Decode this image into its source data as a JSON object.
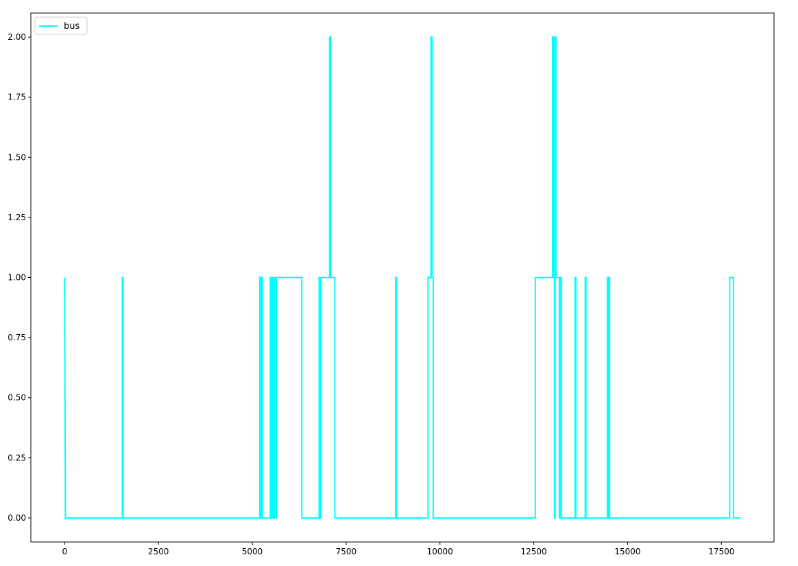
{
  "chart_data": {
    "type": "line",
    "drawstyle": "steps-post",
    "series": [
      {
        "name": "bus",
        "color": "#00FFFF",
        "points": [
          [
            0,
            1
          ],
          [
            20,
            0
          ],
          [
            1540,
            0
          ],
          [
            1540,
            1
          ],
          [
            1560,
            1
          ],
          [
            1560,
            0
          ],
          [
            5200,
            0
          ],
          [
            5200,
            1
          ],
          [
            5220,
            1
          ],
          [
            5220,
            0
          ],
          [
            5250,
            0
          ],
          [
            5250,
            1
          ],
          [
            5270,
            1
          ],
          [
            5270,
            0
          ],
          [
            5480,
            0
          ],
          [
            5480,
            1
          ],
          [
            5500,
            1
          ],
          [
            5500,
            0
          ],
          [
            5520,
            0
          ],
          [
            5520,
            1
          ],
          [
            5540,
            1
          ],
          [
            5540,
            0
          ],
          [
            5560,
            0
          ],
          [
            5560,
            1
          ],
          [
            5580,
            1
          ],
          [
            5580,
            0
          ],
          [
            5600,
            0
          ],
          [
            5600,
            1
          ],
          [
            5620,
            1
          ],
          [
            5620,
            0
          ],
          [
            5640,
            0
          ],
          [
            5640,
            1
          ],
          [
            6320,
            1
          ],
          [
            6320,
            0
          ],
          [
            6780,
            0
          ],
          [
            6780,
            1
          ],
          [
            6800,
            1
          ],
          [
            6800,
            0
          ],
          [
            6830,
            0
          ],
          [
            6830,
            1
          ],
          [
            7060,
            1
          ],
          [
            7060,
            2
          ],
          [
            7090,
            2
          ],
          [
            7090,
            1
          ],
          [
            7200,
            1
          ],
          [
            7200,
            0
          ],
          [
            8820,
            0
          ],
          [
            8820,
            1
          ],
          [
            8840,
            1
          ],
          [
            8840,
            0
          ],
          [
            9680,
            0
          ],
          [
            9680,
            1
          ],
          [
            9760,
            1
          ],
          [
            9760,
            2
          ],
          [
            9790,
            2
          ],
          [
            9790,
            1
          ],
          [
            9820,
            1
          ],
          [
            9820,
            0
          ],
          [
            12540,
            0
          ],
          [
            12540,
            1
          ],
          [
            13000,
            1
          ],
          [
            13000,
            2
          ],
          [
            13030,
            2
          ],
          [
            13030,
            1
          ],
          [
            13050,
            1
          ],
          [
            13050,
            0
          ],
          [
            13070,
            0
          ],
          [
            13070,
            2
          ],
          [
            13090,
            2
          ],
          [
            13090,
            1
          ],
          [
            13180,
            1
          ],
          [
            13180,
            0
          ],
          [
            13200,
            0
          ],
          [
            13200,
            1
          ],
          [
            13240,
            1
          ],
          [
            13240,
            0
          ],
          [
            13600,
            0
          ],
          [
            13600,
            1
          ],
          [
            13620,
            1
          ],
          [
            13620,
            0
          ],
          [
            13870,
            0
          ],
          [
            13870,
            1
          ],
          [
            13890,
            1
          ],
          [
            13890,
            0
          ],
          [
            14460,
            0
          ],
          [
            14460,
            1
          ],
          [
            14480,
            1
          ],
          [
            14480,
            0
          ],
          [
            14500,
            0
          ],
          [
            14500,
            1
          ],
          [
            14520,
            1
          ],
          [
            14520,
            0
          ],
          [
            17720,
            0
          ],
          [
            17720,
            1
          ],
          [
            17820,
            1
          ],
          [
            17820,
            0
          ],
          [
            18000,
            0
          ]
        ]
      }
    ],
    "title": "",
    "xlabel": "",
    "ylabel": "",
    "xlim": [
      -900,
      18900
    ],
    "ylim": [
      -0.1,
      2.1
    ],
    "xticks": [
      0,
      2500,
      5000,
      7500,
      10000,
      12500,
      15000,
      17500
    ],
    "yticks": [
      "0.00",
      "0.25",
      "0.50",
      "0.75",
      "1.00",
      "1.25",
      "1.50",
      "1.75",
      "2.00"
    ],
    "grid": false,
    "legend": {
      "placement": "upper-left",
      "entries": [
        {
          "label": "bus",
          "color": "#00FFFF"
        }
      ]
    }
  }
}
